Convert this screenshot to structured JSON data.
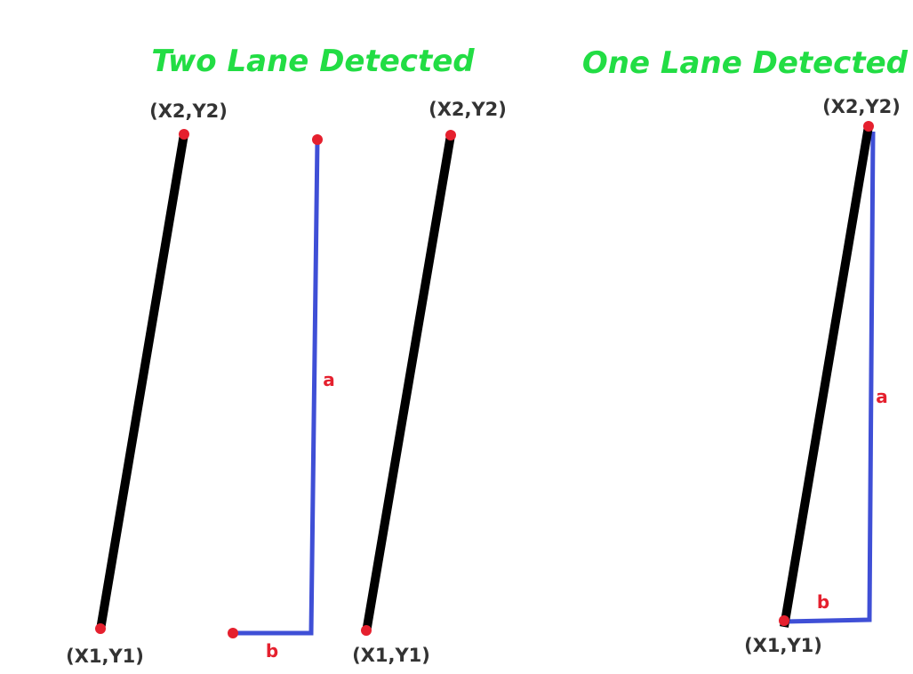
{
  "panels": {
    "two_lane": {
      "title": "Two Lane Detected",
      "left_line": {
        "top_label": "(X2,Y2)",
        "bottom_label": "(X1,Y1)"
      },
      "measure": {
        "side_a": "a",
        "side_b": "b"
      },
      "right_line": {
        "top_label": "(X2,Y2)",
        "bottom_label": "(X1,Y1)"
      }
    },
    "one_lane": {
      "title": "One Lane Detected",
      "line": {
        "top_label": "(X2,Y2)",
        "bottom_label": "(X1,Y1)"
      },
      "measure": {
        "side_a": "a",
        "side_b": "b"
      }
    }
  },
  "colors": {
    "title": "#22dd44",
    "lane_line": "#000000",
    "measure_line": "#3f4fd6",
    "point": "#e5202e",
    "side_label": "#e5202e",
    "coord_label": "#333333"
  }
}
